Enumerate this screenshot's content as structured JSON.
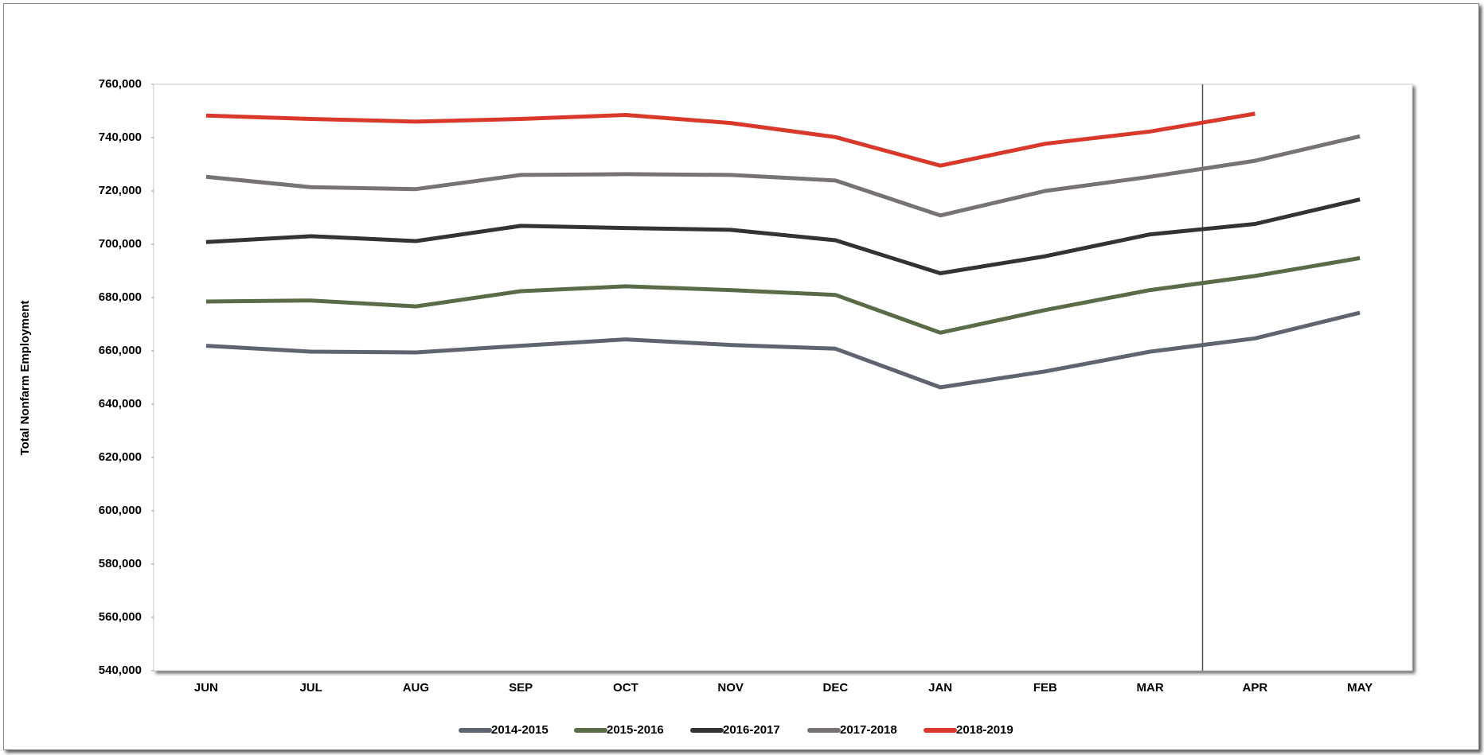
{
  "chart_data": {
    "type": "line",
    "y_label": "Total Nonfarm Employment",
    "categories": [
      "JUN",
      "JUL",
      "AUG",
      "SEP",
      "OCT",
      "NOV",
      "DEC",
      "JAN",
      "FEB",
      "MAR",
      "APR",
      "MAY"
    ],
    "series": [
      {
        "name": "2014-2015",
        "color": "#5f6470",
        "values": [
          661900,
          659700,
          659400,
          661900,
          664300,
          662200,
          660800,
          646300,
          652300,
          659700,
          664700,
          674300
        ]
      },
      {
        "name": "2015-2016",
        "color": "#5a6b48",
        "values": [
          678500,
          678900,
          676700,
          682400,
          684200,
          682800,
          681000,
          666800,
          675300,
          682800,
          688100,
          694800
        ]
      },
      {
        "name": "2016-2017",
        "color": "#333333",
        "values": [
          700800,
          703000,
          701200,
          706900,
          706100,
          705400,
          701500,
          689100,
          695500,
          703700,
          707600,
          716800
        ]
      },
      {
        "name": "2017-2018",
        "color": "#777372",
        "values": [
          725300,
          721400,
          720700,
          726000,
          726300,
          726000,
          723900,
          710800,
          720000,
          725300,
          731300,
          740500
        ]
      },
      {
        "name": "2018-2019",
        "color": "#d9392a",
        "values": [
          748300,
          747000,
          746000,
          747000,
          748500,
          745500,
          740200,
          729500,
          737700,
          742300,
          749000,
          null
        ]
      }
    ],
    "ylim": [
      540000,
      760000
    ],
    "yticks": [
      {
        "value": 540000,
        "label": "540,000"
      },
      {
        "value": 560000,
        "label": "560,000"
      },
      {
        "value": 580000,
        "label": "580,000"
      },
      {
        "value": 600000,
        "label": "600,000"
      },
      {
        "value": 620000,
        "label": "620,000"
      },
      {
        "value": 640000,
        "label": "640,000"
      },
      {
        "value": 660000,
        "label": "660,000"
      },
      {
        "value": 680000,
        "label": "680,000"
      },
      {
        "value": 700000,
        "label": "700,000"
      },
      {
        "value": 720000,
        "label": "720,000"
      },
      {
        "value": 740000,
        "label": "740,000"
      },
      {
        "value": 760000,
        "label": "760,000"
      }
    ],
    "grid": false,
    "legend": "bottom"
  }
}
